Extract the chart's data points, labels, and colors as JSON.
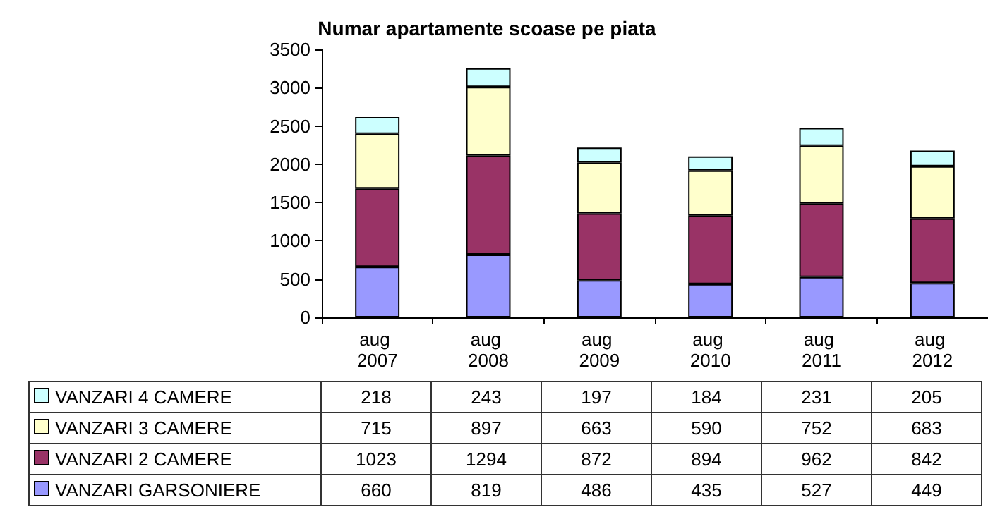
{
  "chart_data": {
    "type": "bar",
    "title": "Numar apartamente scoase pe piata",
    "categories": [
      "aug 2007",
      "aug 2008",
      "aug 2009",
      "aug 2010",
      "aug 2011",
      "aug 2012"
    ],
    "stacked": true,
    "series": [
      {
        "name": "VANZARI GARSONIERE",
        "color": "#9999ff",
        "values": [
          660,
          819,
          486,
          435,
          527,
          449
        ]
      },
      {
        "name": "VANZARI 2 CAMERE",
        "color": "#993366",
        "values": [
          1023,
          1294,
          872,
          894,
          962,
          842
        ]
      },
      {
        "name": "VANZARI 3 CAMERE",
        "color": "#ffffcc",
        "values": [
          715,
          897,
          663,
          590,
          752,
          683
        ]
      },
      {
        "name": "VANZARI 4 CAMERE",
        "color": "#ccffff",
        "values": [
          218,
          243,
          197,
          184,
          231,
          205
        ]
      }
    ],
    "ylim": [
      0,
      3500
    ],
    "yticks": [
      0,
      500,
      1000,
      1500,
      2000,
      2500,
      3000,
      3500
    ],
    "grid": false,
    "legend": "bottom",
    "data_labels": true
  }
}
